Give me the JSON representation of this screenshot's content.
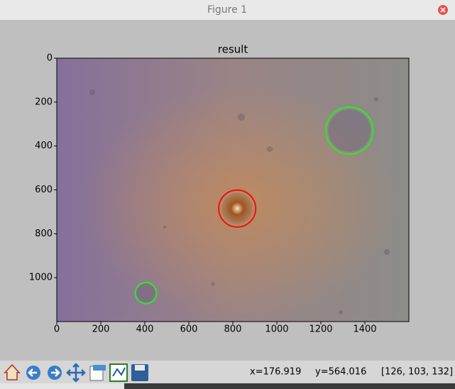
{
  "window": {
    "title": "Figure 1"
  },
  "chart_data": {
    "type": "image",
    "title": "result",
    "xlim": [
      0,
      1600
    ],
    "ylim": [
      1200,
      0
    ],
    "xticks": [
      0,
      200,
      400,
      600,
      800,
      1000,
      1200,
      1400
    ],
    "yticks": [
      0,
      200,
      400,
      600,
      800,
      1000
    ],
    "circles": [
      {
        "x": 1330,
        "y": 330,
        "r": 107,
        "color": "#22ee22"
      },
      {
        "x": 820,
        "y": 685,
        "r": 84,
        "color": "#ee1111"
      },
      {
        "x": 405,
        "y": 1070,
        "r": 48,
        "color": "#22ee22"
      }
    ]
  },
  "status": {
    "x": "x=176.919",
    "y": "y=564.016",
    "pixel": "[126, 103, 132]"
  }
}
